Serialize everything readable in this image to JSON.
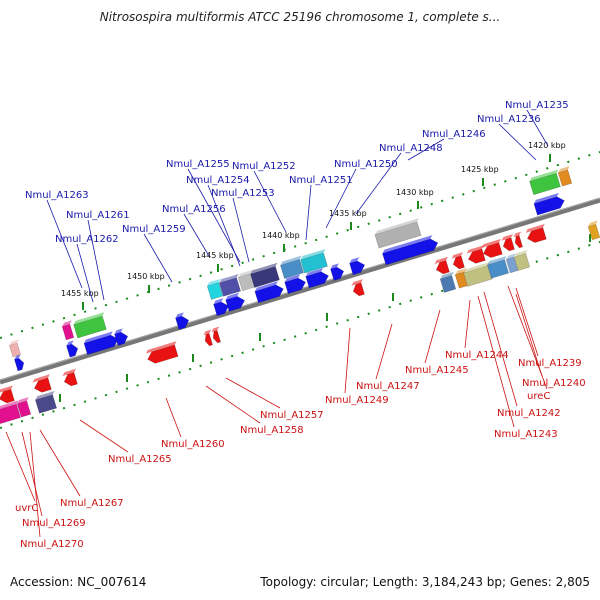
{
  "title": "Nitrosospira multiformis ATCC 25196 chromosome 1, complete s...",
  "footer": {
    "accession": "Accession: NC_007614",
    "topology": "Topology: circular; Length: 3,184,243 bp; Genes: 2,805"
  },
  "colors": {
    "forward_strand": "#1010e0",
    "reverse_strand": "#e01010",
    "ruler_tick": "#1a8a1a",
    "backbone": "#777777"
  },
  "kbp_ticks": [
    {
      "label": "1420 kbp"
    },
    {
      "label": "1425 kbp"
    },
    {
      "label": "1430 kbp"
    },
    {
      "label": "1435 kbp"
    },
    {
      "label": "1440 kbp"
    },
    {
      "label": "1445 kbp"
    },
    {
      "label": "1450 kbp"
    },
    {
      "label": "1455 kbp"
    }
  ],
  "genes_top": [
    {
      "name": "Nmul_A1235"
    },
    {
      "name": "Nmul_A1236"
    },
    {
      "name": "Nmul_A1246"
    },
    {
      "name": "Nmul_A1248"
    },
    {
      "name": "Nmul_A1250"
    },
    {
      "name": "Nmul_A1251"
    },
    {
      "name": "Nmul_A1252"
    },
    {
      "name": "Nmul_A1255"
    },
    {
      "name": "Nmul_A1254"
    },
    {
      "name": "Nmul_A1253"
    },
    {
      "name": "Nmul_A1256"
    },
    {
      "name": "Nmul_A1259"
    },
    {
      "name": "Nmul_A1263"
    },
    {
      "name": "Nmul_A1261"
    },
    {
      "name": "Nmul_A1262"
    }
  ],
  "genes_bottom": [
    {
      "name": "Nmul_A1239"
    },
    {
      "name": "Nmul_A1240"
    },
    {
      "name": "ureC"
    },
    {
      "name": "Nmul_A1242"
    },
    {
      "name": "Nmul_A1243"
    },
    {
      "name": "Nmul_A1244"
    },
    {
      "name": "Nmul_A1245"
    },
    {
      "name": "Nmul_A1247"
    },
    {
      "name": "Nmul_A1249"
    },
    {
      "name": "Nmul_A1257"
    },
    {
      "name": "Nmul_A1258"
    },
    {
      "name": "Nmul_A1260"
    },
    {
      "name": "Nmul_A1265"
    },
    {
      "name": "Nmul_A1267"
    },
    {
      "name": "uvrC"
    },
    {
      "name": "Nmul_A1269"
    },
    {
      "name": "Nmul_A1270"
    }
  ]
}
